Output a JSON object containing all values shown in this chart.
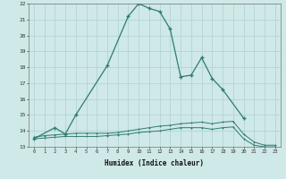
{
  "xlabel": "Humidex (Indice chaleur)",
  "series1_x": [
    0,
    2,
    3,
    4,
    7,
    9,
    10,
    11,
    12,
    13,
    14,
    15,
    16,
    17,
    18,
    20
  ],
  "series1_y": [
    13.5,
    14.2,
    13.8,
    15.0,
    18.1,
    21.2,
    22.0,
    21.7,
    21.5,
    20.4,
    17.4,
    17.5,
    18.6,
    17.3,
    16.6,
    14.8
  ],
  "series2_x": [
    0,
    1,
    2,
    3,
    4,
    5,
    6,
    7,
    8,
    9,
    10,
    11,
    12,
    13,
    14,
    15,
    16,
    17,
    18,
    19,
    20,
    21,
    22,
    23
  ],
  "series2_y": [
    13.6,
    13.7,
    13.75,
    13.8,
    13.85,
    13.85,
    13.85,
    13.85,
    13.9,
    14.0,
    14.1,
    14.2,
    14.3,
    14.35,
    14.45,
    14.5,
    14.55,
    14.45,
    14.55,
    14.6,
    13.8,
    13.3,
    13.1,
    13.1
  ],
  "series3_x": [
    0,
    1,
    2,
    3,
    4,
    5,
    6,
    7,
    8,
    9,
    10,
    11,
    12,
    13,
    14,
    15,
    16,
    17,
    18,
    19,
    20,
    21,
    22,
    23
  ],
  "series3_y": [
    13.5,
    13.55,
    13.6,
    13.65,
    13.65,
    13.65,
    13.65,
    13.7,
    13.75,
    13.8,
    13.9,
    13.95,
    14.0,
    14.1,
    14.2,
    14.2,
    14.2,
    14.1,
    14.2,
    14.25,
    13.5,
    13.1,
    13.0,
    13.0
  ],
  "line_color": "#2e7d6e",
  "bg_color": "#cfe8e8",
  "grid_color": "#afd0d0",
  "ylim": [
    13,
    22
  ],
  "xlim_min": -0.5,
  "xlim_max": 23.5
}
